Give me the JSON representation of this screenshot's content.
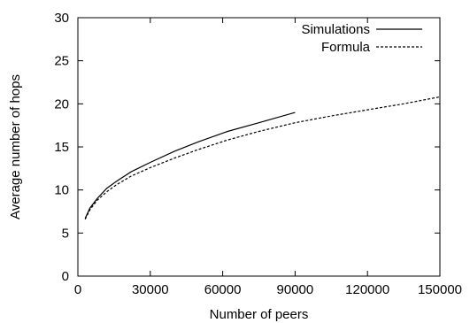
{
  "chart_data": {
    "type": "line",
    "title": "",
    "xlabel": "Number of peers",
    "ylabel": "Average number of hops",
    "xlim": [
      0,
      150000
    ],
    "ylim": [
      0,
      30
    ],
    "x_ticks": [
      0,
      30000,
      60000,
      90000,
      120000,
      150000
    ],
    "y_ticks": [
      0,
      5,
      10,
      15,
      20,
      25,
      30
    ],
    "x_tick_labels": [
      "0",
      "30000",
      "60000",
      "90000",
      "120000",
      "150000"
    ],
    "y_tick_labels": [
      "0",
      "5",
      "10",
      "15",
      "20",
      "25",
      "30"
    ],
    "grid": false,
    "legend": "top-right",
    "series": [
      {
        "name": "Simulations",
        "style": "solid",
        "color": "#000000",
        "x": [
          3000,
          5000,
          8000,
          12000,
          16000,
          22000,
          30000,
          40000,
          50000,
          62000,
          75000,
          90000
        ],
        "y": [
          6.7,
          7.9,
          9.0,
          10.2,
          11.0,
          12.1,
          13.2,
          14.5,
          15.6,
          16.8,
          17.8,
          19.0
        ]
      },
      {
        "name": "Formula",
        "style": "dashed",
        "color": "#000000",
        "x": [
          3000,
          5000,
          8000,
          12000,
          16000,
          22000,
          30000,
          40000,
          50000,
          62000,
          75000,
          90000,
          105000,
          120000,
          135000,
          150000
        ],
        "y": [
          6.6,
          7.7,
          8.8,
          9.8,
          10.6,
          11.6,
          12.6,
          13.7,
          14.7,
          15.8,
          16.8,
          17.8,
          18.6,
          19.3,
          20.0,
          20.8
        ]
      }
    ]
  }
}
